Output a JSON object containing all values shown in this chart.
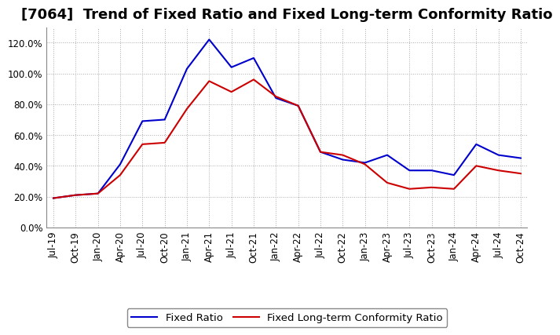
{
  "title": "[7064]  Trend of Fixed Ratio and Fixed Long-term Conformity Ratio",
  "x_labels": [
    "Jul-19",
    "Oct-19",
    "Jan-20",
    "Apr-20",
    "Jul-20",
    "Oct-20",
    "Jan-21",
    "Apr-21",
    "Jul-21",
    "Oct-21",
    "Jan-22",
    "Apr-22",
    "Jul-22",
    "Oct-22",
    "Jan-23",
    "Apr-23",
    "Jul-23",
    "Oct-23",
    "Jan-24",
    "Apr-24",
    "Jul-24",
    "Oct-24"
  ],
  "fixed_ratio": [
    19,
    21,
    22,
    41,
    69,
    70,
    103,
    122,
    104,
    110,
    84,
    79,
    49,
    44,
    42,
    47,
    37,
    37,
    34,
    54,
    47,
    45
  ],
  "fixed_lt_ratio": [
    19,
    21,
    22,
    34,
    54,
    55,
    77,
    95,
    88,
    96,
    85,
    79,
    49,
    47,
    41,
    29,
    25,
    26,
    25,
    40,
    37,
    35
  ],
  "ylim": [
    0,
    130
  ],
  "yticks": [
    0,
    20,
    40,
    60,
    80,
    100,
    120
  ],
  "line_color_fixed": "#0000CC",
  "line_color_lt": "#CC0000",
  "background_color": "#FFFFFF",
  "grid_color": "#AAAAAA",
  "legend_fixed": "Fixed Ratio",
  "legend_lt": "Fixed Long-term Conformity Ratio",
  "title_fontsize": 13,
  "axis_fontsize": 8.5,
  "legend_fontsize": 9.5
}
